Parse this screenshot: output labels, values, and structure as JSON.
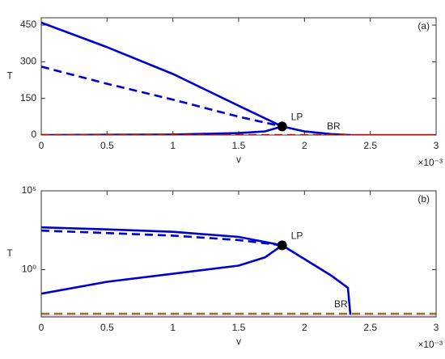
{
  "chart_data": [
    {
      "type": "line",
      "panel_label": "(a)",
      "x_label": "v",
      "y_label": "T",
      "x_multiplier": "×10⁻³",
      "xlim": [
        0,
        3
      ],
      "xticks": [
        0,
        0.5,
        1,
        1.5,
        2,
        2.5,
        3
      ],
      "ylim": [
        0,
        480
      ],
      "yticks": [
        0,
        150,
        300,
        450
      ],
      "log_y": false,
      "series": [
        {
          "color": "#0000cc",
          "linestyle": "solid",
          "x": [
            0,
            0.5,
            1,
            1.5,
            1.83,
            2,
            2.2,
            2.35
          ],
          "values": [
            460,
            360,
            250,
            120,
            35,
            15,
            4,
            0
          ]
        },
        {
          "color": "#0000cc",
          "linestyle": "dashed",
          "x": [
            0,
            0.5,
            1,
            1.5,
            1.83
          ],
          "values": [
            280,
            210,
            145,
            75,
            35
          ]
        },
        {
          "color": "#0000cc",
          "linestyle": "solid",
          "x": [
            0,
            1,
            1.5,
            1.7,
            1.83
          ],
          "values": [
            0,
            2,
            8,
            15,
            35
          ]
        },
        {
          "color": "#ff0000",
          "linestyle": "dashed",
          "x": [
            0,
            2.35
          ],
          "values": [
            0,
            0
          ]
        },
        {
          "color": "#ff0000",
          "linestyle": "solid",
          "x": [
            2.35,
            3
          ],
          "values": [
            0,
            0
          ]
        }
      ],
      "points": [
        {
          "x": 1.83,
          "y": 35,
          "label": "LP"
        }
      ],
      "annotations": [
        "BR"
      ]
    },
    {
      "type": "line",
      "panel_label": "(b)",
      "x_label": "v",
      "y_label": "T",
      "x_multiplier": "×10⁻³",
      "xlim": [
        0,
        3
      ],
      "xticks": [
        0,
        0.5,
        1,
        1.5,
        2,
        2.5,
        3
      ],
      "ylim": [
        0.001,
        100000
      ],
      "yticks": [
        {
          "value": 1,
          "label": "10⁰"
        },
        {
          "value": 100000,
          "label": "10⁵"
        }
      ],
      "log_y": true,
      "series": [
        {
          "color": "#0000cc",
          "linestyle": "solid",
          "x": [
            0,
            0.5,
            1,
            1.5,
            1.83,
            2,
            2.2,
            2.33,
            2.35
          ],
          "values": [
            480,
            360,
            250,
            120,
            35,
            4.7,
            0.44,
            0.07,
            0.001
          ]
        },
        {
          "color": "#0000cc",
          "linestyle": "dashed",
          "x": [
            0,
            0.5,
            1,
            1.5,
            1.83
          ],
          "values": [
            300,
            210,
            145,
            75,
            35
          ]
        },
        {
          "color": "#0000cc",
          "linestyle": "solid",
          "x": [
            0,
            0.5,
            1,
            1.5,
            1.7,
            1.83
          ],
          "values": [
            0.03,
            0.17,
            0.55,
            1.8,
            6,
            35
          ]
        },
        {
          "color": "#f4c7e8",
          "linestyle": "solid",
          "x": [
            0,
            3
          ],
          "values": [
            0.0012,
            0.0012
          ]
        },
        {
          "color": "#8c7a2c",
          "linestyle": "dashed",
          "x": [
            0,
            3
          ],
          "values": [
            0.0016,
            0.0016
          ]
        }
      ],
      "points": [
        {
          "x": 1.83,
          "y": 35,
          "label": "LP"
        }
      ],
      "annotations": [
        "BR"
      ]
    }
  ]
}
